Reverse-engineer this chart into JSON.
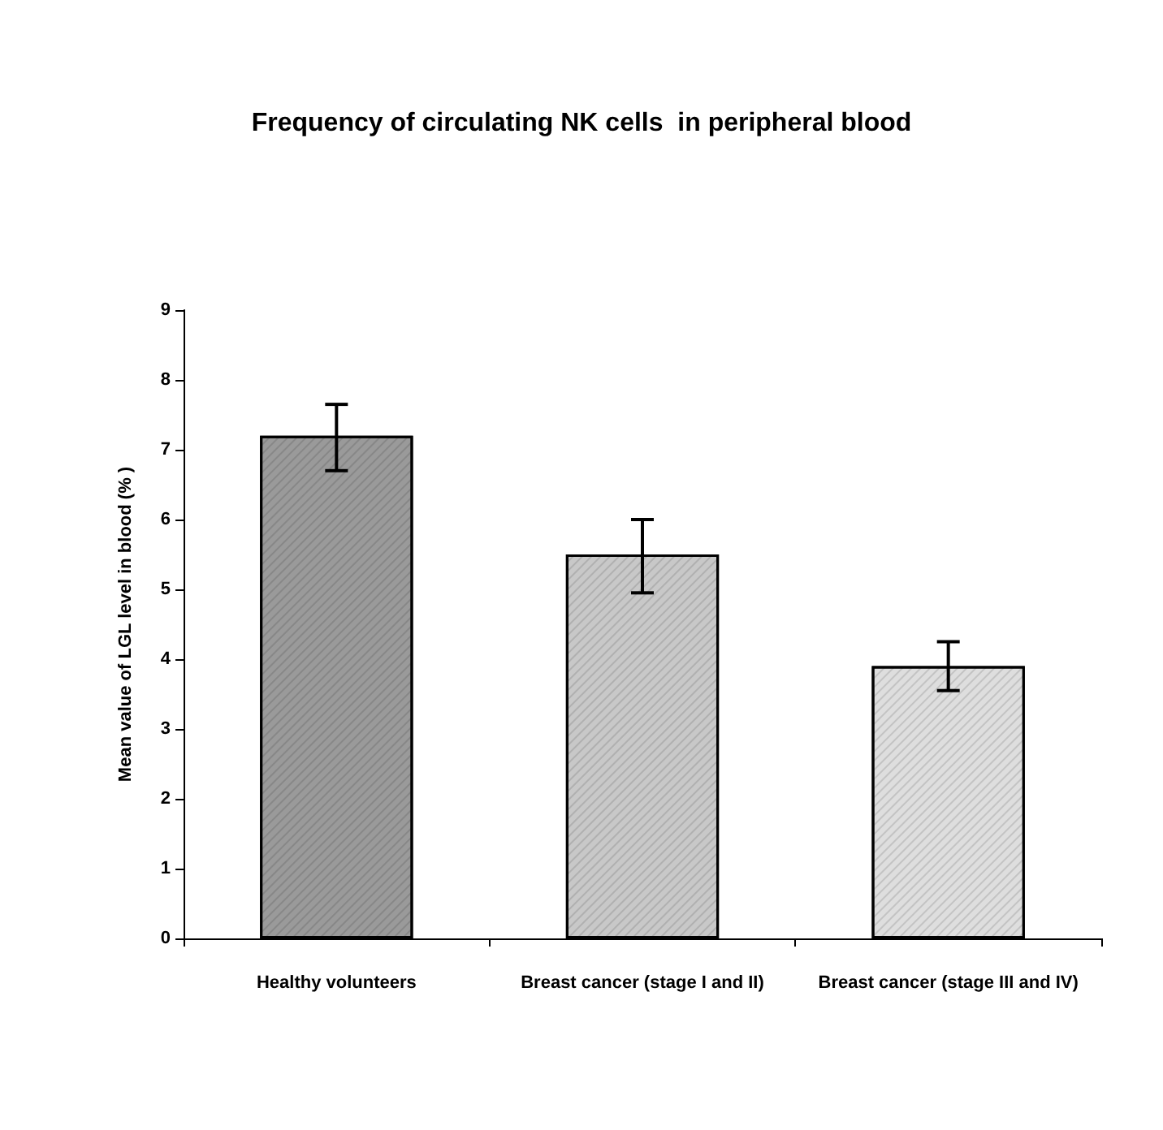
{
  "chart_data": {
    "type": "bar",
    "title": "Frequency of circulating NK cells  in peripheral blood",
    "ylabel": "Mean value of LGL level in blood (% )",
    "categories": [
      "Healthy volunteers",
      "Breast cancer (stage I and II)",
      "Breast cancer (stage III and IV)"
    ],
    "values": [
      7.2,
      5.5,
      3.9
    ],
    "colors": [
      "#9a9a9a",
      "#c8c8c8",
      "#dedede"
    ],
    "errors": [
      [
        6.7,
        7.65
      ],
      [
        4.95,
        6.0
      ],
      [
        3.55,
        4.25
      ]
    ],
    "ylim": [
      0,
      9
    ],
    "yticks": [
      0,
      1,
      2,
      3,
      4,
      5,
      6,
      7,
      8,
      9
    ]
  }
}
